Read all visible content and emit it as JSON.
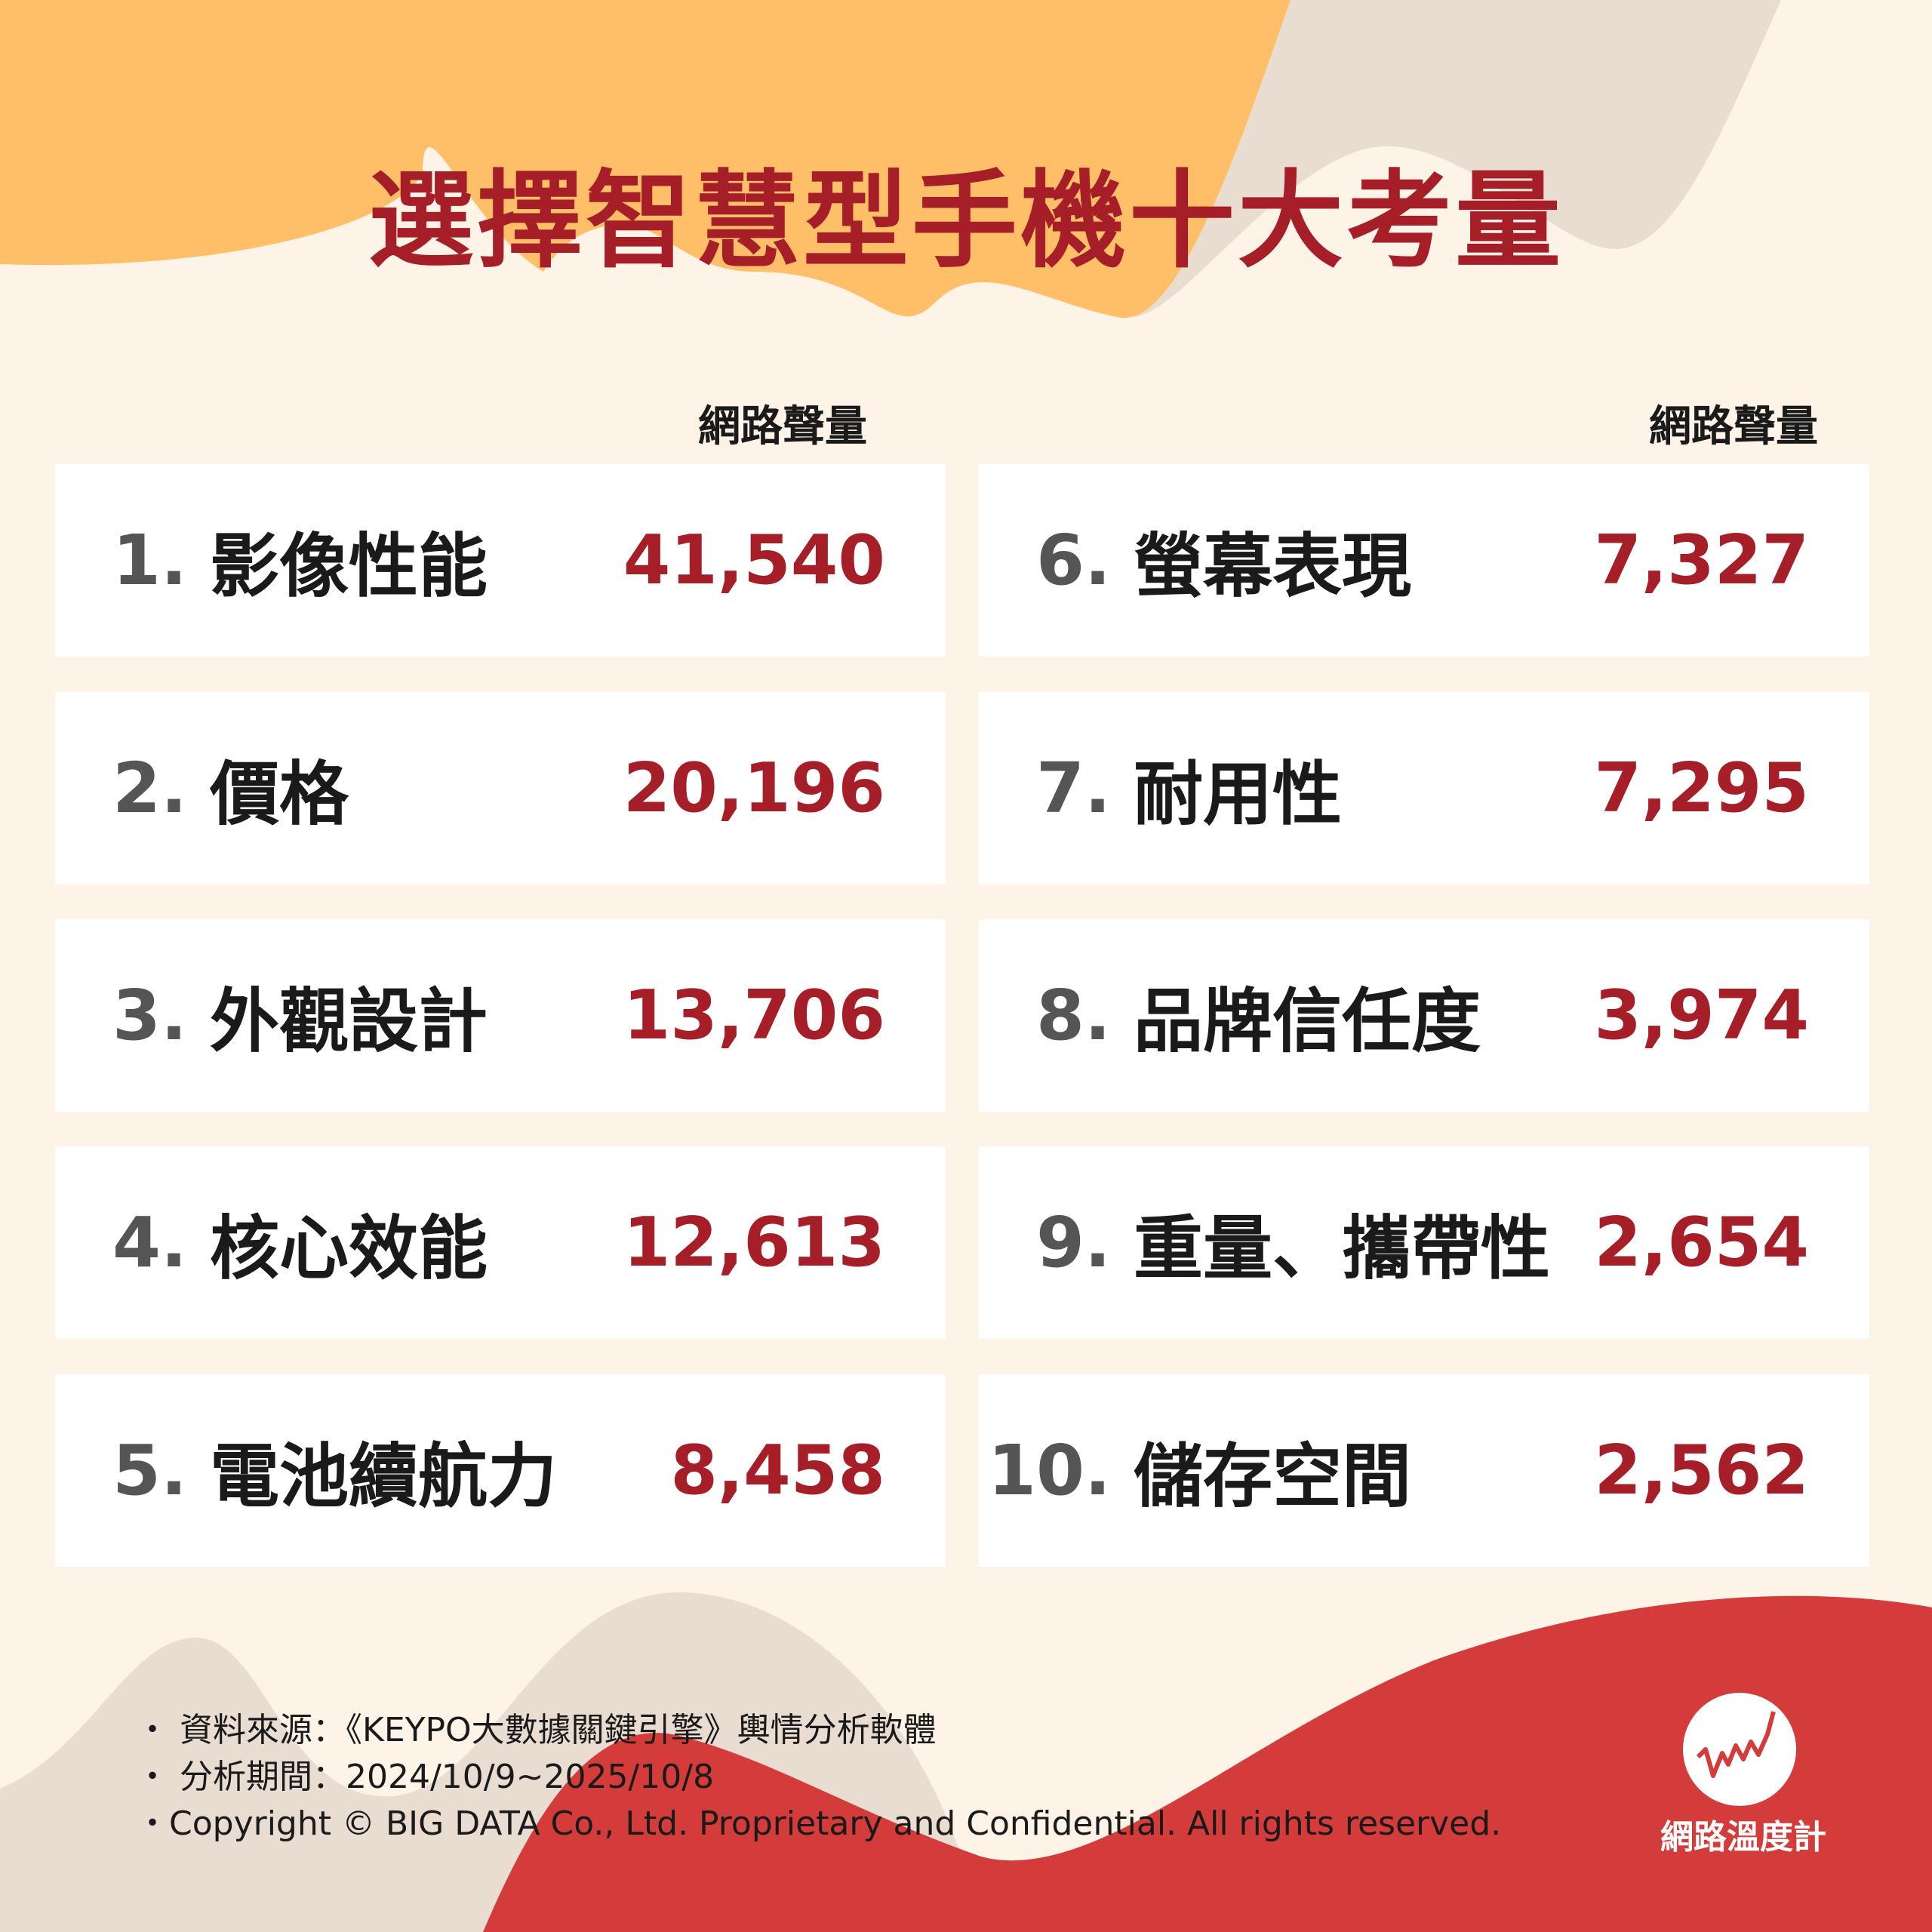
{
  "title": "選擇智慧型手機十大考量",
  "column_header": "網路聲量",
  "colors": {
    "accent_red": "#a61e28",
    "background": "#fdf3e7",
    "orange_shape": "#ffbf69",
    "beige_shape": "#e8ddd0",
    "red_shape": "#d33c3a"
  },
  "left_items": [
    {
      "rank": "1.",
      "label": "影像性能",
      "value": "41,540"
    },
    {
      "rank": "2.",
      "label": "價格",
      "value": "20,196"
    },
    {
      "rank": "3.",
      "label": "外觀設計",
      "value": "13,706"
    },
    {
      "rank": "4.",
      "label": "核心效能",
      "value": "12,613"
    },
    {
      "rank": "5.",
      "label": "電池續航力",
      "value": "8,458"
    }
  ],
  "right_items": [
    {
      "rank": "6.",
      "label": "螢幕表現",
      "value": "7,327"
    },
    {
      "rank": "7.",
      "label": "耐用性",
      "value": "7,295"
    },
    {
      "rank": "8.",
      "label": "品牌信任度",
      "value": "3,974"
    },
    {
      "rank": "9.",
      "label": "重量、攜帶性",
      "value": "2,654"
    },
    {
      "rank": "10.",
      "label": "儲存空間",
      "value": "2,562"
    }
  ],
  "footer": {
    "source": "・ 資料來源：《KEYPO大數據關鍵引擎》輿情分析軟體",
    "period": "・ 分析期間：2024/10/9~2025/10/8",
    "copyright": "・Copyright © BIG DATA Co., Ltd. Proprietary and Confidential. All rights reserved."
  },
  "logo": {
    "text": "網路溫度計",
    "icon": "pulse-line-icon"
  }
}
